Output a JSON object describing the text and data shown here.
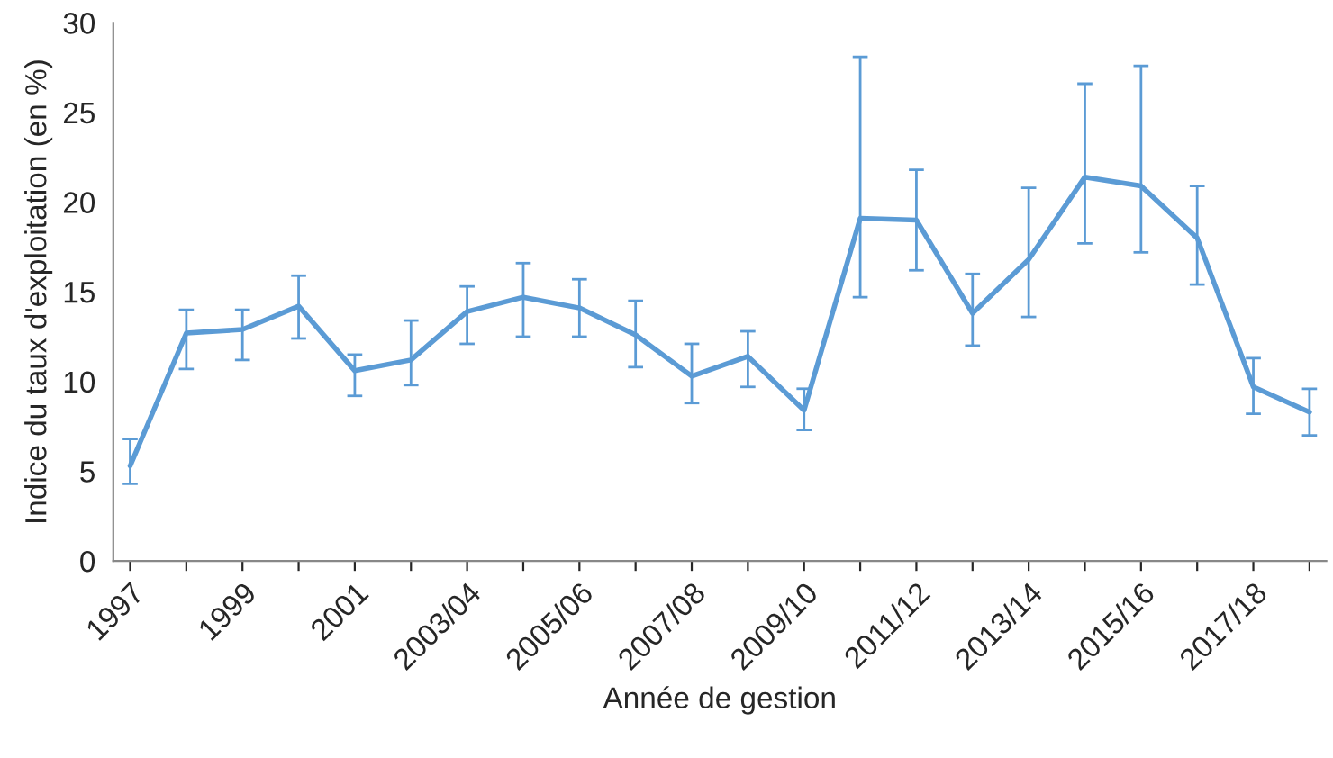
{
  "chart_data": {
    "type": "line",
    "xlabel": "Année de gestion",
    "ylabel": "Indice du taux d'exploitation (en %)",
    "categories": [
      "1997",
      null,
      "1999",
      null,
      "2001",
      null,
      "2003/04",
      null,
      "2005/06",
      null,
      "2007/08",
      null,
      "2009/10",
      null,
      "2011/12",
      null,
      "2013/14",
      null,
      "2015/16",
      null,
      "2017/18",
      null
    ],
    "series": [
      {
        "color": "#5b9bd5",
        "values": [
          5.3,
          12.7,
          12.9,
          14.2,
          10.6,
          11.2,
          13.9,
          14.7,
          14.1,
          12.6,
          10.3,
          11.4,
          8.4,
          19.1,
          19.0,
          13.8,
          16.8,
          21.4,
          20.9,
          18.0,
          9.7,
          8.3
        ],
        "errors": [
          [
            4.3,
            6.8
          ],
          [
            10.7,
            14.0
          ],
          [
            11.2,
            14.0
          ],
          [
            12.4,
            15.9
          ],
          [
            9.2,
            11.5
          ],
          [
            9.8,
            13.4
          ],
          [
            12.1,
            15.3
          ],
          [
            12.5,
            16.6
          ],
          [
            12.5,
            15.7
          ],
          [
            10.8,
            14.5
          ],
          [
            8.8,
            12.1
          ],
          [
            9.7,
            12.8
          ],
          [
            7.3,
            9.6
          ],
          [
            14.7,
            28.1
          ],
          [
            16.2,
            21.8
          ],
          [
            12.0,
            16.0
          ],
          [
            13.6,
            20.8
          ],
          [
            17.7,
            26.6
          ],
          [
            17.2,
            27.6
          ],
          [
            15.4,
            20.9
          ],
          [
            8.2,
            11.3
          ],
          [
            7.0,
            9.6
          ]
        ]
      }
    ],
    "ylim": [
      0,
      30
    ],
    "yticks": [
      0,
      5,
      10,
      15,
      20,
      25,
      30
    ],
    "grid": false,
    "marker": "none",
    "line_style": "solid"
  }
}
